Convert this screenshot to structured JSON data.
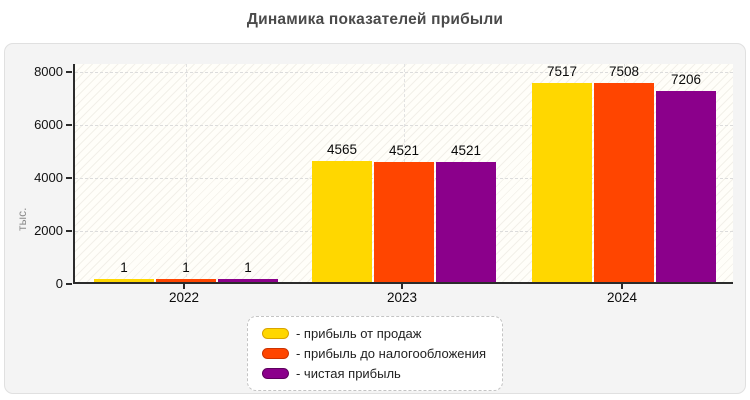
{
  "title": "Динамика показателей прибыли",
  "chart_data": {
    "type": "bar",
    "title": "Динамика показателей прибыли",
    "ylabel": "тыс.",
    "xlabel": "",
    "ylim": [
      0,
      8000
    ],
    "yticks": [
      0,
      2000,
      4000,
      6000,
      8000
    ],
    "grid": true,
    "plot_hatch": true,
    "categories": [
      "2022",
      "2023",
      "2024"
    ],
    "series": [
      {
        "name": "прибыль от продаж",
        "color": "#FFD700",
        "border": "#d9a400",
        "values": [
          1,
          4565,
          7517
        ]
      },
      {
        "name": "прибыль до налогообложения",
        "color": "#FF4500",
        "border": "#cc3300",
        "values": [
          1,
          4521,
          7508
        ]
      },
      {
        "name": "чистая прибыль",
        "color": "#8B008B",
        "border": "#5e005e",
        "values": [
          1,
          4521,
          7206
        ]
      }
    ],
    "legend_position": "bottom",
    "legend_labels": [
      "- прибыль от продаж",
      "- прибыль до налогообложения",
      "- чистая прибыль"
    ]
  }
}
